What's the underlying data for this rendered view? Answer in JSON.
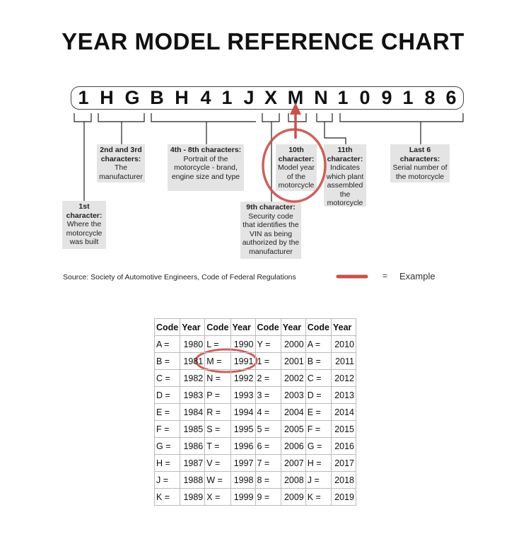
{
  "title": "YEAR MODEL REFERENCE CHART",
  "vin": [
    "1",
    "H",
    "G",
    "B",
    "H",
    "4",
    "1",
    "J",
    "X",
    "M",
    "N",
    "1",
    "0",
    "9",
    "1",
    "8",
    "6"
  ],
  "labels": {
    "first": {
      "head": "1st character:",
      "body": "Where the motorcycle was built"
    },
    "second_third": {
      "head": "2nd and 3rd characters:",
      "body": "The manufacturer"
    },
    "fourth_eighth": {
      "head": "4th - 8th characters:",
      "body": "Portrait of the motorcycle - brand, engine size and type"
    },
    "ninth": {
      "head": "9th character:",
      "body": "Security code that identifies the VIN as being authorized by the manufacturer"
    },
    "tenth": {
      "head": "10th character:",
      "body": "Model year of the motorcycle"
    },
    "eleventh": {
      "head": "11th character:",
      "body": "Indicates which plant assembled the motorcycle"
    },
    "last6": {
      "head": "Last 6 characters:",
      "body": "Serial number of the motorcycle"
    }
  },
  "source": "Source:  Society of Automotive Engineers, Code of Federal Regulations",
  "legend": {
    "equals": "=",
    "example": "Example",
    "highlight_color": "#c9504a"
  },
  "table": {
    "headers": [
      "Code",
      "Year",
      "Code",
      "Year",
      "Code",
      "Year",
      "Code",
      "Year"
    ],
    "rows": [
      [
        "A =",
        "1980",
        "L =",
        "1990",
        "Y =",
        "2000",
        "A =",
        "2010"
      ],
      [
        "B =",
        "1981",
        "M =",
        "1991",
        "1 =",
        "2001",
        "B =",
        "2011"
      ],
      [
        "C =",
        "1982",
        "N =",
        "1992",
        "2 =",
        "2002",
        "C =",
        "2012"
      ],
      [
        "D =",
        "1983",
        "P =",
        "1993",
        "3 =",
        "2003",
        "D =",
        "2013"
      ],
      [
        "E =",
        "1984",
        "R =",
        "1994",
        "4 =",
        "2004",
        "E =",
        "2014"
      ],
      [
        "F =",
        "1985",
        "S =",
        "1995",
        "5 =",
        "2005",
        "F =",
        "2015"
      ],
      [
        "G =",
        "1986",
        "T =",
        "1996",
        "6 =",
        "2006",
        "G =",
        "2016"
      ],
      [
        "H =",
        "1987",
        "V =",
        "1997",
        "7 =",
        "2007",
        "H =",
        "2017"
      ],
      [
        "J =",
        "1988",
        "W =",
        "1998",
        "8 =",
        "2008",
        "J =",
        "2018"
      ],
      [
        "K =",
        "1989",
        "X =",
        "1999",
        "9 =",
        "2009",
        "K =",
        "2019"
      ]
    ]
  }
}
